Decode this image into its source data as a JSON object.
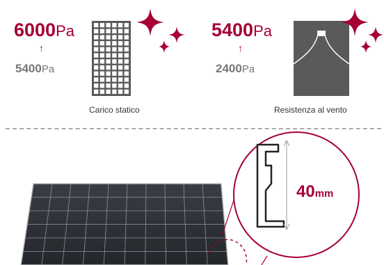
{
  "static_load": {
    "value_high": "6000",
    "unit_high": "Pa",
    "value_low": "5400",
    "unit_low": "Pa",
    "arrow": "↑",
    "caption": "Carico statico"
  },
  "wind_load": {
    "value_high": "5400",
    "unit_high": "Pa",
    "value_low": "2400",
    "unit_low": "Pa",
    "arrow": "↑",
    "caption": "Resistenza al vento"
  },
  "frame_detail": {
    "thickness_value": "40",
    "thickness_unit": "mm"
  },
  "colors": {
    "accent": "#a50034",
    "module_panel": "#5a5a5a",
    "panel_dark": "#2f3338",
    "text_grey": "#777777"
  },
  "icons": [
    "sparkle-icon",
    "solar-module-grid-icon",
    "wind-module-icon",
    "frame-profile-icon"
  ]
}
